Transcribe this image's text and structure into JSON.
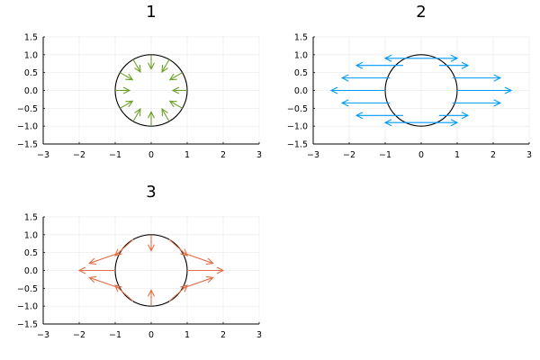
{
  "figure": {
    "layout": "2x2 grid, bottom-right empty"
  },
  "chart_data": [
    {
      "type": "quiver",
      "title": "1",
      "xlim": [
        -3,
        3
      ],
      "ylim": [
        -1.5,
        1.5
      ],
      "xticks": [
        -3,
        -2,
        -1,
        0,
        1,
        2,
        3
      ],
      "yticks": [
        -1.5,
        -1.0,
        -0.5,
        0.0,
        0.5,
        1.0,
        1.5
      ],
      "xtick_labels": [
        "−3",
        "−2",
        "−1",
        "0",
        "1",
        "2",
        "3"
      ],
      "ytick_labels": [
        "−1.5",
        "−1.0",
        "−0.5",
        "0.0",
        "0.5",
        "1.0",
        "1.5"
      ],
      "grid": true,
      "circle": {
        "center": [
          0,
          0
        ],
        "radius": 1,
        "color": "#000000"
      },
      "arrow_color": "#6ea028",
      "arrows": [
        {
          "x": 1.0,
          "y": 0.0,
          "u": -0.4,
          "v": 0.0
        },
        {
          "x": 0.866,
          "y": 0.5,
          "u": -0.3464,
          "v": -0.2
        },
        {
          "x": 0.5,
          "y": 0.866,
          "u": -0.2,
          "v": -0.3464
        },
        {
          "x": 0.0,
          "y": 1.0,
          "u": 0.0,
          "v": -0.4
        },
        {
          "x": -0.5,
          "y": 0.866,
          "u": 0.2,
          "v": -0.3464
        },
        {
          "x": -0.866,
          "y": 0.5,
          "u": 0.3464,
          "v": -0.2
        },
        {
          "x": -1.0,
          "y": 0.0,
          "u": 0.4,
          "v": 0.0
        },
        {
          "x": -0.866,
          "y": -0.5,
          "u": 0.3464,
          "v": 0.2
        },
        {
          "x": -0.5,
          "y": -0.866,
          "u": 0.2,
          "v": 0.3464
        },
        {
          "x": 0.0,
          "y": -1.0,
          "u": 0.0,
          "v": 0.4
        },
        {
          "x": 0.5,
          "y": -0.866,
          "u": -0.2,
          "v": 0.3464
        },
        {
          "x": 0.866,
          "y": -0.5,
          "u": -0.3464,
          "v": 0.2
        }
      ]
    },
    {
      "type": "quiver",
      "title": "2",
      "xlim": [
        -3,
        3
      ],
      "ylim": [
        -1.5,
        1.5
      ],
      "xticks": [
        -3,
        -2,
        -1,
        0,
        1,
        2,
        3
      ],
      "yticks": [
        -1.5,
        -1.0,
        -0.5,
        0.0,
        0.5,
        1.0,
        1.5
      ],
      "xtick_labels": [
        "−3",
        "−2",
        "−1",
        "0",
        "1",
        "2",
        "3"
      ],
      "ytick_labels": [
        "−1.5",
        "−1.0",
        "−0.5",
        "0.0",
        "0.5",
        "1.0",
        "1.5"
      ],
      "grid": true,
      "circle": {
        "center": [
          0,
          0
        ],
        "radius": 1,
        "color": "#000000"
      },
      "arrow_color": "#009af9",
      "arrows": [
        {
          "x": 1.0,
          "y": 0.0,
          "u": 1.5,
          "v": 0.0
        },
        {
          "x": 0.866,
          "y": 0.35,
          "u": 1.33,
          "v": 0.0
        },
        {
          "x": 0.866,
          "y": -0.35,
          "u": 1.33,
          "v": 0.0
        },
        {
          "x": 0.5,
          "y": 0.7,
          "u": 0.8,
          "v": 0.0
        },
        {
          "x": 0.5,
          "y": -0.7,
          "u": 0.8,
          "v": 0.0
        },
        {
          "x": 0.0,
          "y": 0.9,
          "u": 1.0,
          "v": 0.0
        },
        {
          "x": 0.0,
          "y": -0.9,
          "u": 1.0,
          "v": 0.0
        },
        {
          "x": -1.0,
          "y": 0.0,
          "u": -1.5,
          "v": 0.0
        },
        {
          "x": -0.866,
          "y": 0.35,
          "u": -1.33,
          "v": 0.0
        },
        {
          "x": -0.866,
          "y": -0.35,
          "u": -1.33,
          "v": 0.0
        },
        {
          "x": -0.5,
          "y": 0.7,
          "u": -1.3,
          "v": 0.0
        },
        {
          "x": -0.5,
          "y": -0.7,
          "u": -1.3,
          "v": 0.0
        },
        {
          "x": 0.0,
          "y": 0.9,
          "u": -1.0,
          "v": 0.0
        },
        {
          "x": 0.0,
          "y": -0.9,
          "u": -1.0,
          "v": 0.0
        }
      ]
    },
    {
      "type": "quiver",
      "title": "3",
      "xlim": [
        -3,
        3
      ],
      "ylim": [
        -1.5,
        1.5
      ],
      "xticks": [
        -3,
        -2,
        -1,
        0,
        1,
        2,
        3
      ],
      "yticks": [
        -1.5,
        -1.0,
        -0.5,
        0.0,
        0.5,
        1.0,
        1.5
      ],
      "xtick_labels": [
        "−3",
        "−2",
        "−1",
        "0",
        "1",
        "2",
        "3"
      ],
      "ytick_labels": [
        "−1.5",
        "−1.0",
        "−0.5",
        "0.0",
        "0.5",
        "1.0",
        "1.5"
      ],
      "grid": true,
      "circle": {
        "center": [
          0,
          0
        ],
        "radius": 1,
        "color": "#000000"
      },
      "arrow_color": "#e26f46",
      "arrows": [
        {
          "x": 1.0,
          "y": 0.0,
          "u": 1.0,
          "v": 0.0
        },
        {
          "x": 0.866,
          "y": 0.5,
          "u": 0.85,
          "v": -0.3
        },
        {
          "x": 0.5,
          "y": 0.866,
          "u": 0.5,
          "v": -0.45
        },
        {
          "x": 0.0,
          "y": 1.0,
          "u": 0.0,
          "v": -0.45
        },
        {
          "x": -0.5,
          "y": 0.866,
          "u": -0.5,
          "v": -0.45
        },
        {
          "x": -0.866,
          "y": 0.5,
          "u": -0.85,
          "v": -0.3
        },
        {
          "x": -1.0,
          "y": 0.0,
          "u": -1.0,
          "v": 0.0
        },
        {
          "x": -0.866,
          "y": -0.5,
          "u": -0.85,
          "v": 0.3
        },
        {
          "x": -0.5,
          "y": -0.866,
          "u": -0.5,
          "v": 0.45
        },
        {
          "x": 0.0,
          "y": -1.0,
          "u": 0.0,
          "v": 0.45
        },
        {
          "x": 0.5,
          "y": -0.866,
          "u": 0.5,
          "v": 0.45
        },
        {
          "x": 0.866,
          "y": -0.5,
          "u": 0.85,
          "v": 0.3
        }
      ]
    }
  ]
}
